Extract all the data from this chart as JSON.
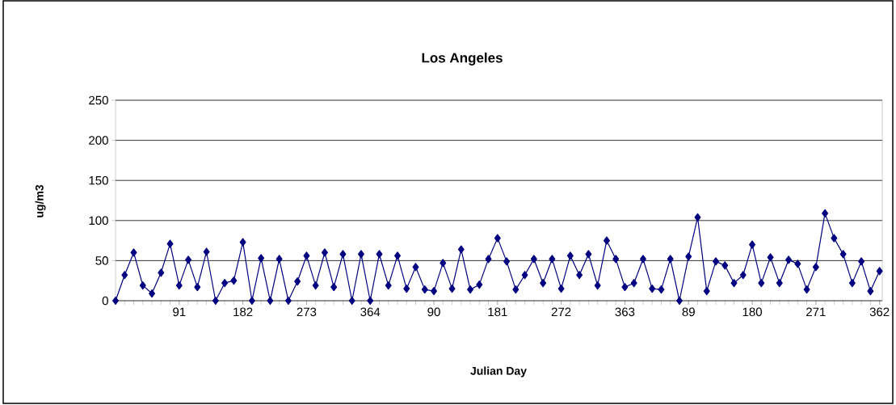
{
  "chart_data": {
    "type": "line",
    "title": "Los Angeles",
    "xlabel": "Julian Day",
    "ylabel": "ug/m3",
    "categories": [
      null,
      null,
      null,
      null,
      null,
      null,
      null,
      "91",
      null,
      null,
      null,
      null,
      null,
      null,
      "182",
      null,
      null,
      null,
      null,
      null,
      null,
      "273",
      null,
      null,
      null,
      null,
      null,
      null,
      "364",
      null,
      null,
      null,
      null,
      null,
      null,
      "90",
      null,
      null,
      null,
      null,
      null,
      null,
      "181",
      null,
      null,
      null,
      null,
      null,
      null,
      "272",
      null,
      null,
      null,
      null,
      null,
      null,
      "363",
      null,
      null,
      null,
      null,
      null,
      null,
      "89",
      null,
      null,
      null,
      null,
      null,
      null,
      "180",
      null,
      null,
      null,
      null,
      null,
      null,
      "271",
      null,
      null,
      null,
      null,
      null,
      null,
      "362"
    ],
    "series": [
      {
        "color": "#000080",
        "values": [
          0,
          32,
          60,
          19,
          9,
          35,
          71,
          19,
          51,
          17,
          61,
          0,
          22,
          25,
          73,
          0,
          53,
          0,
          52,
          0,
          24,
          56,
          19,
          60,
          17,
          58,
          0,
          58,
          0,
          58,
          19,
          56,
          15,
          42,
          14,
          12,
          47,
          15,
          64,
          14,
          20,
          52,
          78,
          49,
          14,
          32,
          52,
          22,
          52,
          15,
          56,
          32,
          58,
          19,
          75,
          52,
          17,
          22,
          52,
          15,
          14,
          52,
          0,
          55,
          104,
          12,
          49,
          44,
          22,
          32,
          70,
          22,
          54,
          22,
          51,
          46,
          14,
          42,
          109,
          78,
          58,
          22,
          49,
          12,
          37
        ]
      }
    ],
    "ylim": [
      0,
      250
    ],
    "yticks": [
      0,
      50,
      100,
      150,
      200,
      250
    ],
    "grid": "y",
    "marker": "diamond",
    "line_style": "solid"
  }
}
